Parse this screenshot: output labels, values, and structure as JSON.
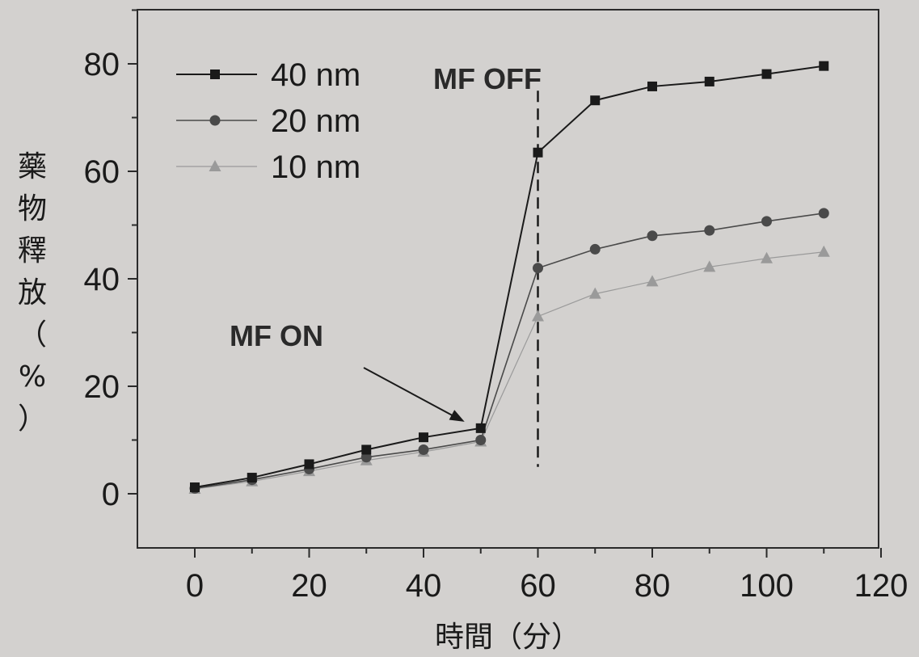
{
  "chart_data": {
    "type": "line",
    "title": "",
    "xlabel": "時間（分）",
    "ylabel_chars": [
      "藥",
      "物",
      "釋",
      "放",
      "（",
      "%",
      "）"
    ],
    "xlim": [
      -10,
      120
    ],
    "ylim": [
      -10,
      90
    ],
    "xticks": [
      0,
      20,
      40,
      60,
      80,
      100,
      120
    ],
    "yticks": [
      0,
      20,
      40,
      60,
      80
    ],
    "legend_position": "top-left",
    "series": [
      {
        "name": "40 nm",
        "marker": "square",
        "color": "#1a1a1a",
        "x": [
          0,
          10,
          20,
          30,
          40,
          50,
          60,
          70,
          80,
          90,
          100,
          110
        ],
        "y": [
          1.2,
          3.0,
          5.5,
          8.2,
          10.5,
          12.2,
          63.5,
          73.2,
          75.8,
          76.7,
          78.1,
          79.6
        ]
      },
      {
        "name": "20 nm",
        "marker": "circle",
        "color": "#4a4a4a",
        "x": [
          0,
          10,
          20,
          30,
          40,
          50,
          60,
          70,
          80,
          90,
          100,
          110
        ],
        "y": [
          1.0,
          2.6,
          4.6,
          6.8,
          8.2,
          10.0,
          42.0,
          45.5,
          48.0,
          49.0,
          50.7,
          52.2
        ]
      },
      {
        "name": "10 nm",
        "marker": "triangle",
        "color": "#9a9a9a",
        "x": [
          0,
          10,
          20,
          30,
          40,
          50,
          60,
          70,
          80,
          90,
          100,
          110
        ],
        "y": [
          0.9,
          2.3,
          4.2,
          6.2,
          7.8,
          9.7,
          33.0,
          37.2,
          39.5,
          42.2,
          43.8,
          45.0
        ]
      }
    ],
    "annotations": {
      "mf_on": {
        "text": "MF ON",
        "arrow_to": [
          50,
          12.2
        ]
      },
      "mf_off": {
        "text": "MF OFF",
        "line_x": 60,
        "line_y": [
          5,
          75
        ]
      }
    }
  }
}
